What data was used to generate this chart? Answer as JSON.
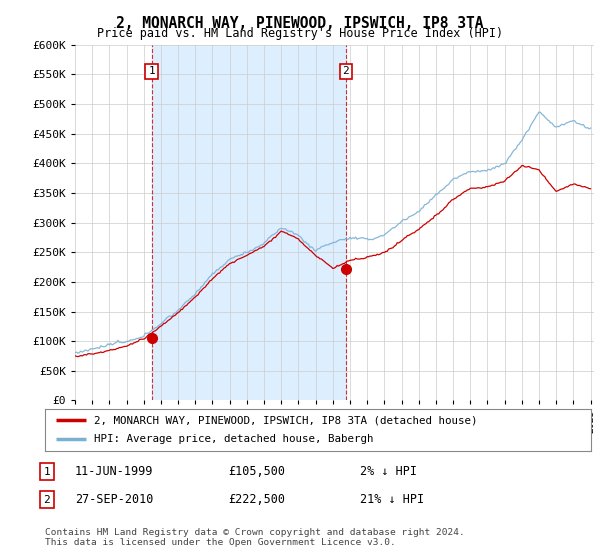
{
  "title": "2, MONARCH WAY, PINEWOOD, IPSWICH, IP8 3TA",
  "subtitle": "Price paid vs. HM Land Registry's House Price Index (HPI)",
  "legend_house": "2, MONARCH WAY, PINEWOOD, IPSWICH, IP8 3TA (detached house)",
  "legend_hpi": "HPI: Average price, detached house, Babergh",
  "sale1_date": "11-JUN-1999",
  "sale1_price": "£105,500",
  "sale1_hpi": "2% ↓ HPI",
  "sale2_date": "27-SEP-2010",
  "sale2_price": "£222,500",
  "sale2_hpi": "21% ↓ HPI",
  "footnote": "Contains HM Land Registry data © Crown copyright and database right 2024.\nThis data is licensed under the Open Government Licence v3.0.",
  "house_color": "#cc0000",
  "hpi_color": "#7ab0d4",
  "vline_color": "#cc0000",
  "shade_color": "#ddeeff",
  "ylim": [
    0,
    600000
  ],
  "yticks": [
    0,
    50000,
    100000,
    150000,
    200000,
    250000,
    300000,
    350000,
    400000,
    450000,
    500000,
    550000,
    600000
  ],
  "background_color": "#ffffff",
  "plot_bg_color": "#ffffff",
  "grid_color": "#cccccc",
  "sale1_x": 1999.46,
  "sale1_y": 105500,
  "sale2_x": 2010.75,
  "sale2_y": 222500,
  "xmin": 1995.0,
  "xmax": 2025.2
}
